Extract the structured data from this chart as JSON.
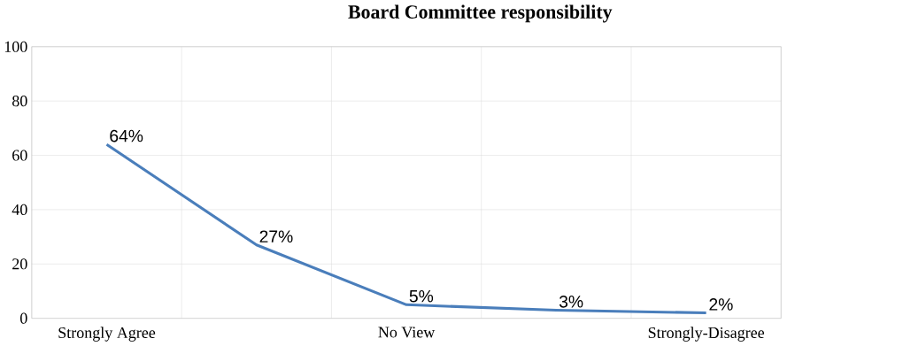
{
  "chart_data": {
    "type": "line",
    "title": "Board Committee responsibility",
    "categories": [
      "Strongly Agree",
      null,
      "No View",
      null,
      "Strongly-Disagree"
    ],
    "values": [
      64,
      27,
      5,
      3,
      2
    ],
    "value_labels": [
      "64%",
      "27%",
      "5%",
      "3%",
      "2%"
    ],
    "color": "#4a7ebb",
    "ylim": [
      0,
      100
    ],
    "yticks": [
      0,
      20,
      40,
      60,
      80,
      100
    ],
    "grid": true
  }
}
